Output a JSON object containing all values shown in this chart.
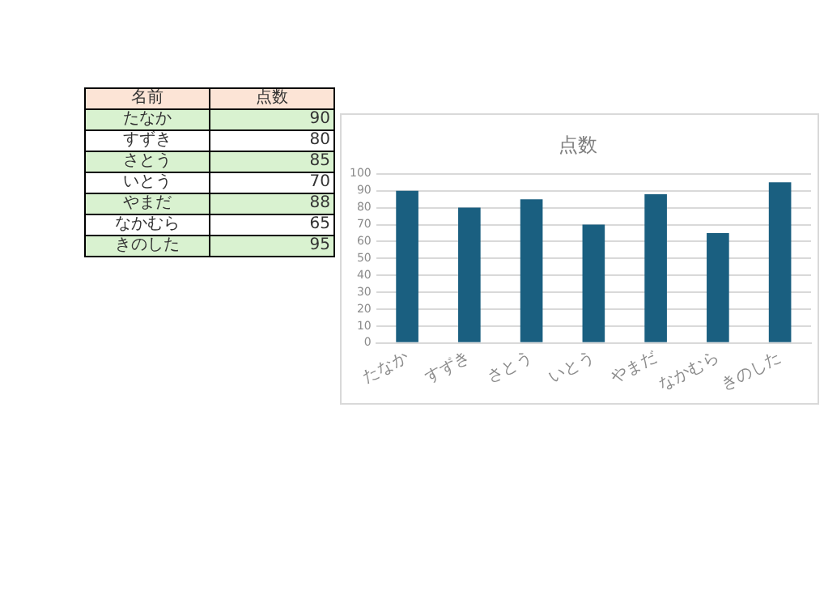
{
  "chart_data": [
    {
      "type": "other",
      "categories": [
        "たなか",
        "すずき",
        "さとう",
        "いとう",
        "やまだ",
        "なかむら",
        "きのした"
      ],
      "values": [
        90,
        80,
        85,
        70,
        88,
        65,
        95
      ],
      "data_labels": true,
      "annotations": [
        "名前",
        "点数"
      ]
    },
    {
      "type": "bar",
      "title": "点数",
      "categories": [
        "たなか",
        "すずき",
        "さとう",
        "いとう",
        "やまだ",
        "なかむら",
        "きのした"
      ],
      "values": [
        90,
        80,
        85,
        70,
        88,
        65,
        95
      ],
      "color": "#1a5f80",
      "ylim": [
        0,
        100
      ],
      "yticks": [
        0,
        10,
        20,
        30,
        40,
        50,
        60,
        70,
        80,
        90,
        100
      ],
      "grid": "y"
    }
  ]
}
